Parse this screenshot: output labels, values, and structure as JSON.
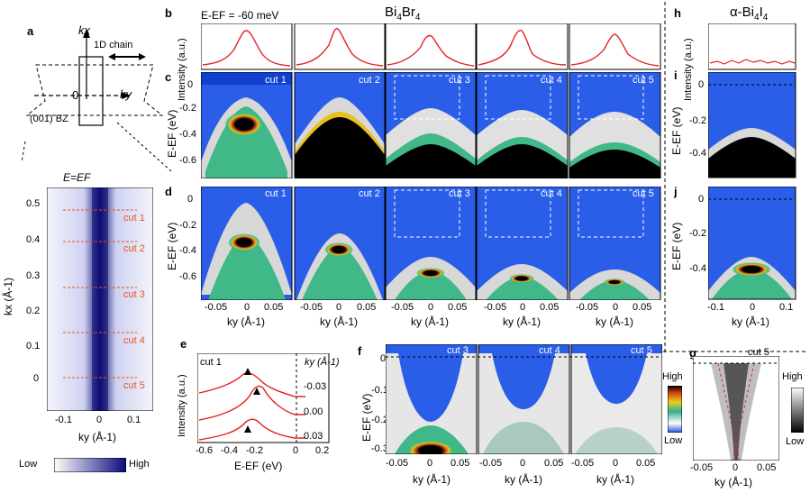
{
  "panels": {
    "a": "a",
    "b": "b",
    "c": "c",
    "d": "d",
    "e": "e",
    "f": "f",
    "g": "g",
    "h": "h",
    "i": "i",
    "j": "j"
  },
  "titles": {
    "main": "Bi4Br4",
    "main_base": "Bi",
    "main_sub1": "4",
    "main_mid": "Br",
    "main_sub2": "4",
    "alt": "α-Bi4I4",
    "alt_base": "α-Bi",
    "alt_sub1": "4",
    "alt_mid": "I",
    "alt_sub2": "4"
  },
  "panel_a": {
    "bz_label": "(001) BZ",
    "chain_label": "1D chain",
    "kx": "kx",
    "ky": "ky",
    "origin": "0",
    "map_title": "E=EF",
    "ylabel": "kx (Å-1)",
    "xlabel": "ky (Å-1)",
    "yticks": [
      "0.5",
      "0.4",
      "0.3",
      "0.2",
      "0.1",
      "0"
    ],
    "xticks": [
      "-0.1",
      "0",
      "0.1"
    ],
    "cuts": [
      "cut 1",
      "cut 2",
      "cut 3",
      "cut 4",
      "cut 5"
    ],
    "colorbar_low": "Low",
    "colorbar_high": "High",
    "colors": {
      "map": "#1a1aa8",
      "cuts": "#e85520"
    }
  },
  "panel_b": {
    "energy_label": "E-EF = -60 meV",
    "ylabel": "Intensity (a.u.)",
    "line_color": "#e52222"
  },
  "panel_c": {
    "ylabel": "E-EF (eV)",
    "yticks": [
      "0",
      "-0.2",
      "-0.4",
      "-0.6"
    ],
    "cuts": [
      "cut 1",
      "cut 2",
      "cut 3",
      "cut 4",
      "cut 5"
    ]
  },
  "panel_d": {
    "ylabel": "E-EF (eV)",
    "yticks": [
      "0",
      "-0.2",
      "-0.4",
      "-0.6"
    ],
    "xticks": [
      "-0.05",
      "0",
      "0.05"
    ],
    "xlabel": "ky (Å-1)",
    "cuts": [
      "cut 1",
      "cut 2",
      "cut 3",
      "cut 4",
      "cut 5"
    ]
  },
  "panel_e": {
    "cut_label": "cut 1",
    "ky_header": "ky (Å-1)",
    "ky_values": [
      "-0.03",
      "0.00",
      "0.03"
    ],
    "ylabel": "Intensity (a.u.)",
    "xlabel": "E-EF (eV)",
    "xticks": [
      "-0.6",
      "-0.4",
      "-0.2",
      "0",
      "0.2"
    ]
  },
  "panel_f": {
    "ylabel": "E-EF (eV)",
    "yticks": [
      "0",
      "-0.1",
      "-0.2",
      "-0.3"
    ],
    "xticks": [
      "-0.05",
      "0",
      "0.05"
    ],
    "xlabel": "ky (Å-1)",
    "cuts": [
      "cut 3",
      "cut 4",
      "cut 5"
    ],
    "colorbar_high": "High",
    "colorbar_low": "Low"
  },
  "panel_g": {
    "cut_label": "cut 5",
    "xticks": [
      "-0.05",
      "0",
      "0.05"
    ],
    "xlabel": "ky (Å-1)",
    "colorbar_high": "High",
    "colorbar_low": "Low"
  },
  "panel_h": {
    "ylabel": "Intensity (a.u.)"
  },
  "panel_i": {
    "ylabel": "E-EF (eV)",
    "yticks": [
      "0",
      "-0.2",
      "-0.4"
    ]
  },
  "panel_j": {
    "ylabel": "E-EF (eV)",
    "yticks": [
      "0",
      "-0.2",
      "-0.4"
    ],
    "xticks": [
      "-0.1",
      "0",
      "0.1"
    ],
    "xlabel": "ky (Å-1)"
  }
}
